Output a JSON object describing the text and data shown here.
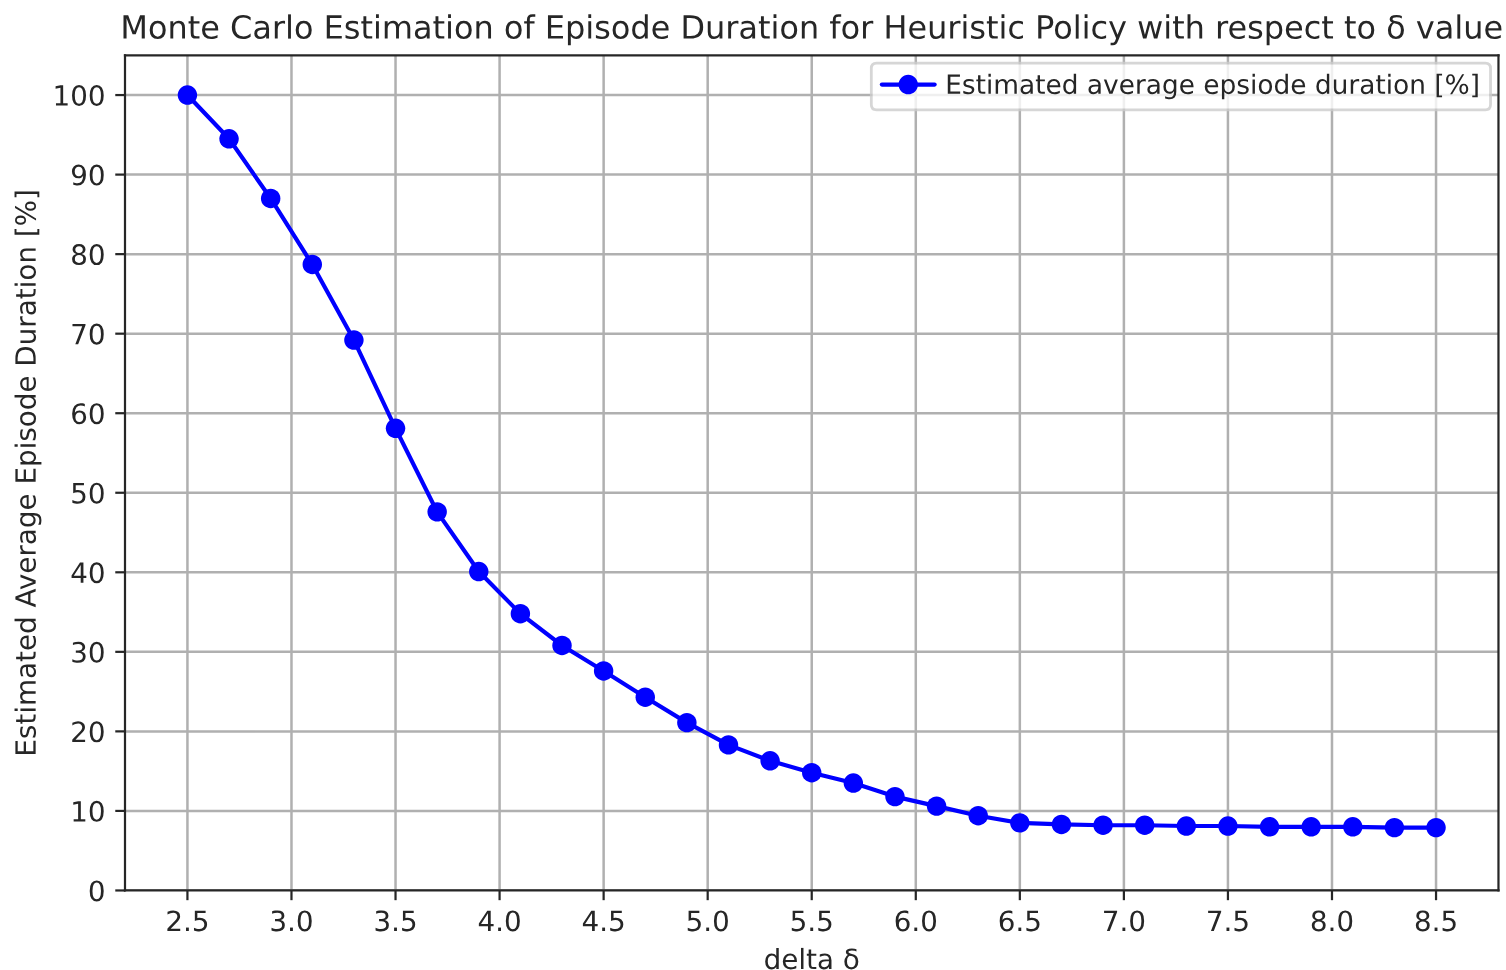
{
  "chart_data": {
    "type": "line",
    "title": "Monte Carlo Estimation of Episode Duration for Heuristic Policy with respect to δ value",
    "xlabel": "delta δ",
    "ylabel": "Estimated Average Episode Duration [%]",
    "x": [
      2.5,
      2.7,
      2.9,
      3.1,
      3.3,
      3.5,
      3.7,
      3.9,
      4.1,
      4.3,
      4.5,
      4.7,
      4.9,
      5.1,
      5.3,
      5.5,
      5.7,
      5.9,
      6.1,
      6.3,
      6.5,
      6.7,
      6.9,
      7.1,
      7.3,
      7.5,
      7.7,
      7.9,
      8.1,
      8.3,
      8.5
    ],
    "series": [
      {
        "name": "Estimated average epsiode duration [%]",
        "color": "#0000ff",
        "values": [
          100,
          94.5,
          87,
          78.7,
          69.2,
          58.1,
          47.6,
          40.1,
          34.8,
          30.8,
          27.6,
          24.3,
          21.1,
          18.3,
          16.3,
          14.8,
          13.5,
          11.8,
          10.6,
          9.4,
          8.5,
          8.3,
          8.2,
          8.2,
          8.1,
          8.1,
          8.0,
          8.0,
          8.0,
          7.9,
          7.9
        ]
      }
    ],
    "xlim": [
      2.2,
      8.8
    ],
    "xticks": [
      2.5,
      {
        "value": 3,
        "label": "3.0"
      },
      3.5,
      {
        "value": 4,
        "label": "4.0"
      },
      4.5,
      {
        "value": 5,
        "label": "5.0"
      },
      5.5,
      {
        "value": 6,
        "label": "6.0"
      },
      6.5,
      {
        "value": 7,
        "label": "7.0"
      },
      7.5,
      {
        "value": 8,
        "label": "8.0"
      },
      8.5
    ],
    "ylim": [
      0,
      105
    ],
    "yticks": [
      0,
      10,
      20,
      30,
      40,
      50,
      60,
      70,
      80,
      90,
      100
    ],
    "grid": true,
    "legend": "top right",
    "marker": "circle",
    "line_style": "solid"
  }
}
